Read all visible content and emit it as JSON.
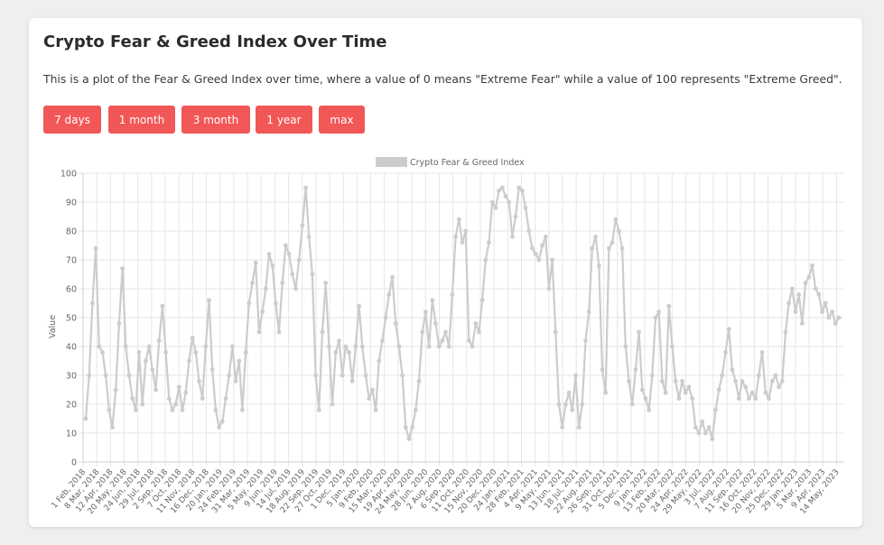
{
  "title": "Crypto Fear & Greed Index Over Time",
  "description": "This is a plot of the Fear & Greed Index over time, where a value of 0 means \"Extreme Fear\" while a value of 100 represents \"Extreme Greed\".",
  "buttons": [
    "7 days",
    "1 month",
    "3 month",
    "1 year",
    "max"
  ],
  "colors": {
    "button": "#f25757",
    "line": "#cccccc",
    "grid": "#e6e6e6"
  },
  "chart_data": {
    "type": "line",
    "legend": "Crypto Fear & Greed Index",
    "legend_position": "top",
    "ylabel": "Value",
    "ylim": [
      0,
      100
    ],
    "yticks": [
      0,
      10,
      20,
      30,
      40,
      50,
      60,
      70,
      80,
      90,
      100
    ],
    "grid": true,
    "xticks": [
      "1 Feb, 2018",
      "8 Mar, 2018",
      "12 Apr, 2018",
      "20 May, 2018",
      "24 Jun, 2018",
      "29 Jul, 2018",
      "2 Sep, 2018",
      "7 Oct, 2018",
      "11 Nov, 2018",
      "16 Dec, 2018",
      "20 Jan, 2019",
      "24 Feb, 2019",
      "31 Mar, 2019",
      "5 May, 2019",
      "9 Jun, 2019",
      "14 Jul, 2019",
      "18 Aug, 2019",
      "22 Sep, 2019",
      "27 Oct, 2019",
      "1 Dec, 2019",
      "5 Jan, 2020",
      "9 Feb, 2020",
      "15 Mar, 2020",
      "19 Apr, 2020",
      "24 May, 2020",
      "28 Jun, 2020",
      "2 Aug, 2020",
      "6 Sep, 2020",
      "11 Oct, 2020",
      "15 Nov, 2020",
      "20 Dec, 2020",
      "24 Jan, 2021",
      "28 Feb, 2021",
      "4 Apr, 2021",
      "9 May, 2021",
      "13 Jun, 2021",
      "18 Jul, 2021",
      "22 Aug, 2021",
      "26 Sep, 2021",
      "31 Oct, 2021",
      "5 Dec, 2021",
      "9 Jan, 2022",
      "13 Feb, 2022",
      "20 Mar, 2022",
      "24 Apr, 2022",
      "29 May, 2022",
      "3 Jul, 2022",
      "7 Aug, 2022",
      "11 Sep, 2022",
      "16 Oct, 2022",
      "20 Nov, 2022",
      "25 Dec, 2022",
      "29 Jan, 2023",
      "5 Mar, 2023",
      "9 Apr, 2023",
      "14 May, 2023"
    ],
    "series": [
      {
        "name": "Crypto Fear & Greed Index",
        "values": [
          15,
          30,
          55,
          74,
          40,
          38,
          30,
          18,
          12,
          25,
          48,
          67,
          40,
          30,
          22,
          18,
          38,
          20,
          35,
          40,
          32,
          25,
          42,
          54,
          38,
          22,
          18,
          20,
          26,
          18,
          24,
          35,
          43,
          38,
          28,
          22,
          40,
          56,
          32,
          18,
          12,
          14,
          22,
          30,
          40,
          28,
          35,
          18,
          38,
          55,
          62,
          69,
          45,
          52,
          60,
          72,
          68,
          55,
          45,
          62,
          75,
          72,
          65,
          60,
          70,
          82,
          95,
          78,
          65,
          30,
          18,
          45,
          62,
          40,
          20,
          38,
          42,
          30,
          40,
          38,
          28,
          40,
          54,
          40,
          30,
          22,
          25,
          18,
          35,
          42,
          50,
          58,
          64,
          48,
          40,
          30,
          12,
          8,
          12,
          18,
          28,
          45,
          52,
          40,
          56,
          48,
          40,
          42,
          45,
          40,
          58,
          78,
          84,
          76,
          80,
          42,
          40,
          48,
          45,
          56,
          70,
          76,
          90,
          88,
          94,
          95,
          92,
          90,
          78,
          85,
          95,
          94,
          88,
          80,
          74,
          72,
          70,
          75,
          78,
          60,
          70,
          45,
          20,
          12,
          20,
          24,
          18,
          30,
          12,
          20,
          42,
          52,
          74,
          78,
          68,
          32,
          24,
          74,
          76,
          84,
          80,
          74,
          40,
          28,
          20,
          32,
          45,
          25,
          22,
          18,
          30,
          50,
          52,
          28,
          24,
          54,
          40,
          28,
          22,
          28,
          24,
          26,
          22,
          12,
          10,
          14,
          10,
          12,
          8,
          18,
          25,
          30,
          38,
          46,
          32,
          28,
          22,
          28,
          26,
          22,
          24,
          22,
          30,
          38,
          24,
          22,
          28,
          30,
          26,
          28,
          45,
          55,
          60,
          52,
          58,
          48,
          62,
          64,
          68,
          60,
          58,
          52,
          55,
          50,
          52,
          48,
          50
        ]
      }
    ]
  }
}
